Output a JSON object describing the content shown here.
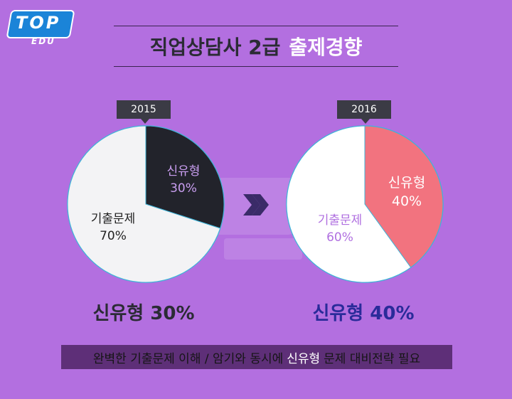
{
  "logo": {
    "top": "TOP",
    "edu": "EDU"
  },
  "title": {
    "main": "직업상담사 2급",
    "accent": "출제경향"
  },
  "colors": {
    "background": "#b36fe0",
    "pie_2015_new": "#22232b",
    "pie_2015_old": "#f3f3f5",
    "pie_2016_new": "#f2737f",
    "pie_2016_old": "#ffffff",
    "pie_border": "#3fb4d8",
    "footer_bg": "#5e2f78"
  },
  "chart_data": [
    {
      "type": "pie",
      "title": "2015",
      "categories": [
        "신유형",
        "기출문제"
      ],
      "values": [
        30,
        70
      ],
      "labels": [
        {
          "name": "신유형",
          "value": "30%"
        },
        {
          "name": "기출문제",
          "value": "70%"
        }
      ],
      "caption": "신유형 30%"
    },
    {
      "type": "pie",
      "title": "2016",
      "categories": [
        "신유형",
        "기출문제"
      ],
      "values": [
        40,
        60
      ],
      "labels": [
        {
          "name": "신유형",
          "value": "40%"
        },
        {
          "name": "기출문제",
          "value": "60%"
        }
      ],
      "caption": "신유형 40%"
    }
  ],
  "arrow_icon": "double-chevron-right-icon",
  "footer": {
    "part1": "완벽한 기출문제 이해 / 암기와 동시에",
    "part2": "신유형",
    "part3": "문제 대비전략 필요"
  }
}
